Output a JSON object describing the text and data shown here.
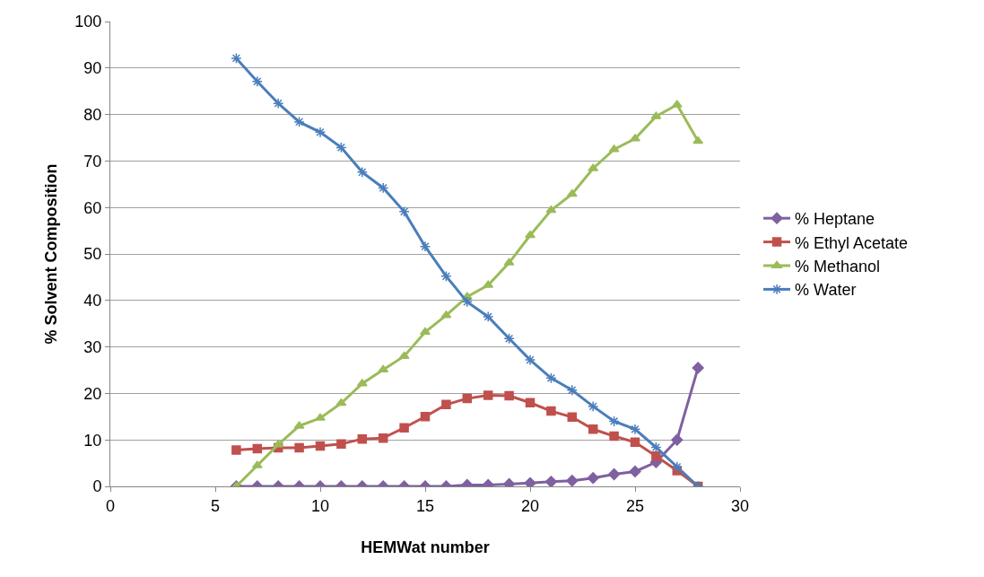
{
  "chart_data": {
    "type": "line",
    "xlabel": "HEMWat number",
    "ylabel": "% Solvent Composition",
    "x": [
      6,
      7,
      8,
      9,
      10,
      11,
      12,
      13,
      14,
      15,
      16,
      17,
      18,
      19,
      20,
      21,
      22,
      23,
      24,
      25,
      26,
      27,
      28
    ],
    "xlim": [
      0,
      30
    ],
    "xticks": [
      0,
      5,
      10,
      15,
      20,
      25,
      30
    ],
    "ylim": [
      0,
      100
    ],
    "yticks": [
      0,
      10,
      20,
      30,
      40,
      50,
      60,
      70,
      80,
      90,
      100
    ],
    "grid": "y",
    "legend": "right",
    "line_style": "solid",
    "series": [
      {
        "name": "% Heptane",
        "color": "#7f60a0",
        "marker": "diamond",
        "values": [
          0,
          0,
          0,
          0,
          0,
          0,
          0,
          0,
          0,
          0,
          0,
          0.3,
          0.3,
          0.5,
          0.7,
          1,
          1.2,
          1.8,
          2.6,
          3.2,
          5.2,
          10,
          25.5
        ]
      },
      {
        "name": "% Ethyl Acetate",
        "color": "#c0504d",
        "marker": "square",
        "values": [
          7.8,
          8.1,
          8.3,
          8.3,
          8.7,
          9.1,
          10.2,
          10.4,
          12.6,
          15,
          17.6,
          18.9,
          19.6,
          19.5,
          18,
          16.2,
          14.9,
          12.3,
          10.8,
          9.5,
          6.5,
          3.4,
          0
        ]
      },
      {
        "name": "% Methanol",
        "color": "#9bbb59",
        "marker": "triangle",
        "values": [
          0,
          4.5,
          9,
          13,
          14.7,
          17.9,
          22.1,
          25.1,
          28,
          33.2,
          36.8,
          40.8,
          43.3,
          48.1,
          54,
          59.4,
          62.9,
          68.4,
          72.5,
          74.8,
          79.6,
          82.1,
          74.3
        ]
      },
      {
        "name": "% Water",
        "color": "#4a7ebb",
        "marker": "cross",
        "values": [
          92.1,
          87.1,
          82.4,
          78.4,
          76.2,
          72.9,
          67.6,
          64.2,
          59.1,
          51.6,
          45.2,
          39.7,
          36.5,
          31.8,
          27.2,
          23.3,
          20.7,
          17.2,
          14,
          12.3,
          8.4,
          4.2,
          0
        ]
      }
    ]
  }
}
